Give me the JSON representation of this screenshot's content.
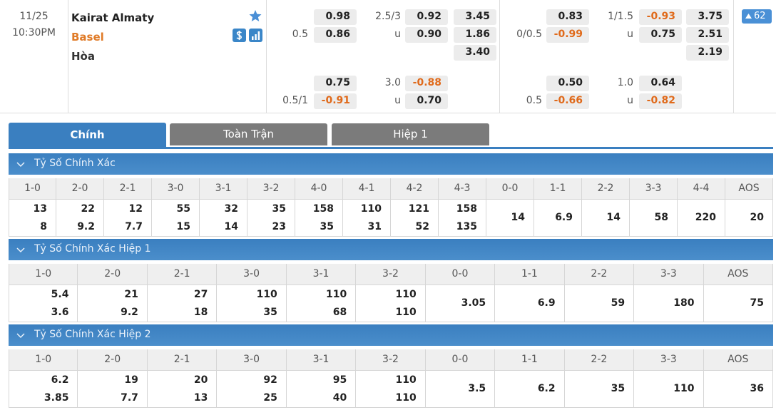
{
  "match": {
    "date": "11/25",
    "time": "10:30PM",
    "home": "Kairat Almaty",
    "away": "Basel",
    "draw": "Hòa",
    "more": "62"
  },
  "odds": {
    "rows": [
      [
        null,
        "0.98",
        "2.5/3",
        "0.92",
        "3.45",
        null,
        "0.83",
        "1/1.5",
        "-0.93",
        "3.75"
      ],
      [
        "0.5",
        "0.86",
        "u",
        "0.90",
        "1.86",
        "0/0.5",
        "-0.99",
        "u",
        "0.75",
        "2.51"
      ],
      [
        null,
        null,
        null,
        null,
        "3.40",
        null,
        null,
        null,
        null,
        "2.19"
      ],
      [
        null,
        "0.75",
        "3.0",
        "-0.88",
        null,
        null,
        "0.50",
        "1.0",
        "0.64",
        null
      ],
      [
        "0.5/1",
        "-0.91",
        "u",
        "0.70",
        null,
        "0.5",
        "-0.66",
        "u",
        "-0.82",
        null
      ]
    ]
  },
  "tabs": [
    "Chính",
    "Toàn Trận",
    "Hiệp 1"
  ],
  "sections": [
    {
      "title": "Tỷ Số Chính Xác",
      "columns": [
        {
          "label": "1-0",
          "values": [
            "13",
            "8"
          ]
        },
        {
          "label": "2-0",
          "values": [
            "22",
            "9.2"
          ]
        },
        {
          "label": "2-1",
          "values": [
            "12",
            "7.7"
          ]
        },
        {
          "label": "3-0",
          "values": [
            "55",
            "15"
          ]
        },
        {
          "label": "3-1",
          "values": [
            "32",
            "14"
          ]
        },
        {
          "label": "3-2",
          "values": [
            "35",
            "23"
          ]
        },
        {
          "label": "4-0",
          "values": [
            "158",
            "35"
          ]
        },
        {
          "label": "4-1",
          "values": [
            "110",
            "31"
          ]
        },
        {
          "label": "4-2",
          "values": [
            "121",
            "52"
          ]
        },
        {
          "label": "4-3",
          "values": [
            "158",
            "135"
          ]
        },
        {
          "label": "0-0",
          "values": [
            "14"
          ]
        },
        {
          "label": "1-1",
          "values": [
            "6.9"
          ]
        },
        {
          "label": "2-2",
          "values": [
            "14"
          ]
        },
        {
          "label": "3-3",
          "values": [
            "58"
          ]
        },
        {
          "label": "4-4",
          "values": [
            "220"
          ]
        },
        {
          "label": "AOS",
          "values": [
            "20"
          ]
        }
      ]
    },
    {
      "title": "Tỷ Số Chính Xác Hiệp 1",
      "columns": [
        {
          "label": "1-0",
          "values": [
            "5.4",
            "3.6"
          ]
        },
        {
          "label": "2-0",
          "values": [
            "21",
            "9.2"
          ]
        },
        {
          "label": "2-1",
          "values": [
            "27",
            "18"
          ]
        },
        {
          "label": "3-0",
          "values": [
            "110",
            "35"
          ]
        },
        {
          "label": "3-1",
          "values": [
            "110",
            "68"
          ]
        },
        {
          "label": "3-2",
          "values": [
            "110",
            "110"
          ]
        },
        {
          "label": "0-0",
          "values": [
            "3.05"
          ]
        },
        {
          "label": "1-1",
          "values": [
            "6.9"
          ]
        },
        {
          "label": "2-2",
          "values": [
            "59"
          ]
        },
        {
          "label": "3-3",
          "values": [
            "180"
          ]
        },
        {
          "label": "AOS",
          "values": [
            "75"
          ]
        }
      ]
    },
    {
      "title": "Tỷ Số Chính Xác Hiệp 2",
      "columns": [
        {
          "label": "1-0",
          "values": [
            "6.2",
            "3.85"
          ]
        },
        {
          "label": "2-0",
          "values": [
            "19",
            "7.7"
          ]
        },
        {
          "label": "2-1",
          "values": [
            "20",
            "13"
          ]
        },
        {
          "label": "3-0",
          "values": [
            "92",
            "25"
          ]
        },
        {
          "label": "3-1",
          "values": [
            "95",
            "40"
          ]
        },
        {
          "label": "3-2",
          "values": [
            "110",
            "110"
          ]
        },
        {
          "label": "0-0",
          "values": [
            "3.5"
          ]
        },
        {
          "label": "1-1",
          "values": [
            "6.2"
          ]
        },
        {
          "label": "2-2",
          "values": [
            "35"
          ]
        },
        {
          "label": "3-3",
          "values": [
            "110"
          ]
        },
        {
          "label": "AOS",
          "values": [
            "36"
          ]
        }
      ]
    }
  ]
}
